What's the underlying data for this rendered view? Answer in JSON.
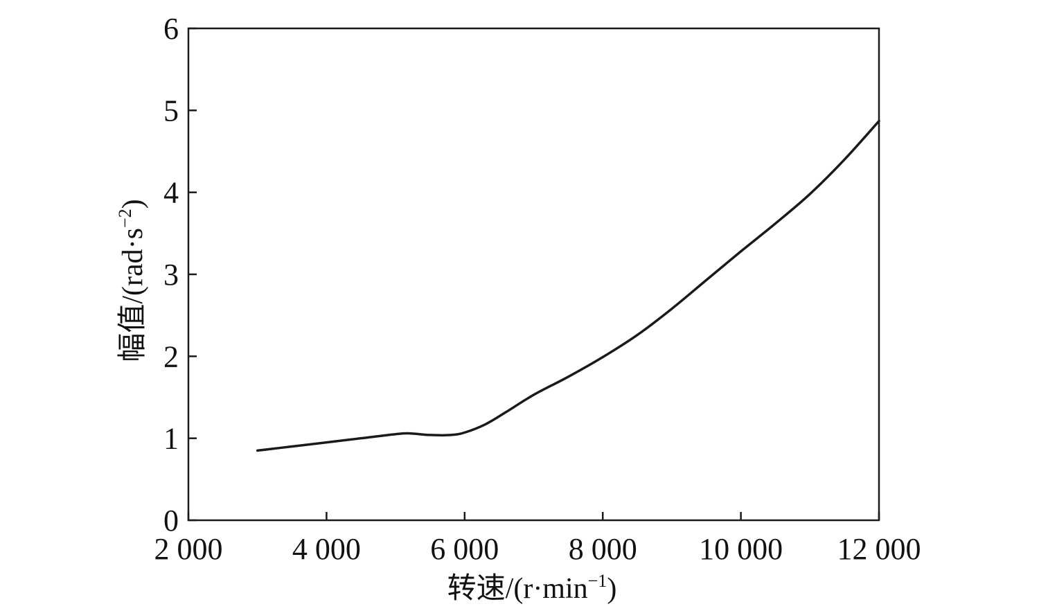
{
  "chart_data": {
    "type": "line",
    "title": "",
    "xlabel": "转速/(r·min",
    "xlabel_sup": "−1",
    "xlabel_close": ")",
    "ylabel": "幅值/(rad·s",
    "ylabel_sup": "−2",
    "ylabel_close": ")",
    "xlim": [
      2000,
      12000
    ],
    "ylim": [
      0,
      6
    ],
    "xticks": [
      2000,
      4000,
      6000,
      8000,
      10000,
      12000
    ],
    "xtick_labels": [
      "2 000",
      "4 000",
      "6 000",
      "8 000",
      "10 000",
      "12 000"
    ],
    "yticks": [
      0,
      1,
      2,
      3,
      4,
      5,
      6
    ],
    "ytick_labels": [
      "0",
      "1",
      "2",
      "3",
      "4",
      "5",
      "6"
    ],
    "grid": false,
    "line_color": "#1a1a1a",
    "series": [
      {
        "x": [
          3000,
          3500,
          4000,
          4500,
          5000,
          5200,
          5500,
          5800,
          6000,
          6300,
          6600,
          7000,
          7500,
          8000,
          8500,
          9000,
          9500,
          10000,
          10500,
          11000,
          11500,
          12000
        ],
        "y": [
          0.85,
          0.9,
          0.95,
          1.0,
          1.05,
          1.06,
          1.04,
          1.04,
          1.07,
          1.17,
          1.32,
          1.53,
          1.75,
          1.99,
          2.26,
          2.58,
          2.93,
          3.28,
          3.62,
          3.98,
          4.4,
          4.87
        ]
      }
    ]
  }
}
